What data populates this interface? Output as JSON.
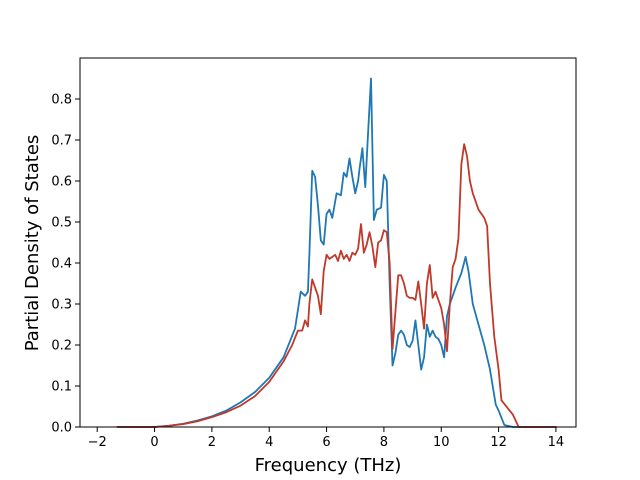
{
  "chart_data": {
    "type": "line",
    "title": "",
    "xlabel": "Frequency (THz)",
    "ylabel": "Partial Density of States",
    "xlim": [
      -2.6,
      14.7
    ],
    "ylim": [
      0,
      0.9
    ],
    "xticks": [
      -2,
      0,
      2,
      4,
      6,
      8,
      10,
      12,
      14
    ],
    "xtick_labels": [
      "−2",
      "0",
      "2",
      "4",
      "6",
      "8",
      "10",
      "12",
      "14"
    ],
    "yticks": [
      0.0,
      0.1,
      0.2,
      0.3,
      0.4,
      0.5,
      0.6,
      0.7,
      0.8
    ],
    "ytick_labels": [
      "0.0",
      "0.1",
      "0.2",
      "0.3",
      "0.4",
      "0.5",
      "0.6",
      "0.7",
      "0.8"
    ],
    "grid": false,
    "legend": "none",
    "series": [
      {
        "color": "#1f77b4",
        "x": [
          -1.3,
          0.0,
          0.5,
          1.0,
          1.5,
          2.0,
          2.5,
          3.0,
          3.5,
          4.0,
          4.5,
          4.9,
          5.1,
          5.25,
          5.35,
          5.4,
          5.5,
          5.6,
          5.7,
          5.8,
          5.9,
          6.0,
          6.1,
          6.2,
          6.3,
          6.35,
          6.5,
          6.6,
          6.7,
          6.8,
          6.9,
          7.0,
          7.1,
          7.15,
          7.25,
          7.35,
          7.45,
          7.55,
          7.65,
          7.75,
          7.9,
          8.0,
          8.1,
          8.2,
          8.3,
          8.4,
          8.5,
          8.6,
          8.7,
          8.8,
          8.9,
          9.0,
          9.1,
          9.2,
          9.3,
          9.4,
          9.5,
          9.6,
          9.7,
          9.8,
          9.9,
          10.0,
          10.1,
          10.2,
          10.3,
          10.4,
          10.5,
          10.7,
          10.85,
          10.95,
          11.1,
          11.3,
          11.5,
          11.7,
          11.9,
          12.0,
          12.2,
          12.5,
          14.0
        ],
        "y": [
          0.0,
          0.0,
          0.003,
          0.008,
          0.016,
          0.026,
          0.04,
          0.06,
          0.085,
          0.12,
          0.17,
          0.24,
          0.33,
          0.32,
          0.33,
          0.42,
          0.625,
          0.61,
          0.54,
          0.455,
          0.445,
          0.52,
          0.53,
          0.51,
          0.55,
          0.57,
          0.565,
          0.62,
          0.61,
          0.655,
          0.61,
          0.57,
          0.6,
          0.63,
          0.68,
          0.585,
          0.72,
          0.85,
          0.505,
          0.53,
          0.535,
          0.615,
          0.6,
          0.35,
          0.15,
          0.18,
          0.225,
          0.235,
          0.225,
          0.2,
          0.195,
          0.21,
          0.26,
          0.2,
          0.14,
          0.17,
          0.25,
          0.22,
          0.235,
          0.22,
          0.215,
          0.2,
          0.17,
          0.27,
          0.3,
          0.32,
          0.34,
          0.375,
          0.415,
          0.38,
          0.3,
          0.25,
          0.2,
          0.14,
          0.055,
          0.04,
          0.005,
          0.0,
          0.0
        ]
      },
      {
        "color": "#c0392b",
        "x": [
          -1.3,
          0.0,
          0.5,
          1.0,
          1.5,
          2.0,
          2.5,
          3.0,
          3.5,
          4.0,
          4.5,
          4.8,
          5.0,
          5.1,
          5.15,
          5.25,
          5.35,
          5.4,
          5.5,
          5.6,
          5.7,
          5.8,
          5.9,
          6.0,
          6.1,
          6.2,
          6.3,
          6.4,
          6.5,
          6.6,
          6.7,
          6.8,
          6.9,
          7.0,
          7.1,
          7.2,
          7.3,
          7.4,
          7.5,
          7.6,
          7.7,
          7.8,
          7.9,
          8.0,
          8.1,
          8.2,
          8.3,
          8.4,
          8.5,
          8.6,
          8.7,
          8.8,
          8.9,
          9.0,
          9.1,
          9.2,
          9.3,
          9.4,
          9.5,
          9.6,
          9.7,
          9.8,
          9.9,
          10.0,
          10.1,
          10.2,
          10.3,
          10.4,
          10.5,
          10.6,
          10.7,
          10.8,
          10.9,
          11.0,
          11.1,
          11.3,
          11.5,
          11.6,
          11.7,
          11.85,
          12.0,
          12.1,
          12.5,
          12.7,
          14.0
        ],
        "y": [
          0.0,
          0.0,
          0.003,
          0.007,
          0.014,
          0.024,
          0.036,
          0.052,
          0.075,
          0.11,
          0.16,
          0.2,
          0.235,
          0.235,
          0.235,
          0.26,
          0.245,
          0.3,
          0.36,
          0.34,
          0.32,
          0.275,
          0.38,
          0.42,
          0.41,
          0.415,
          0.42,
          0.405,
          0.43,
          0.41,
          0.42,
          0.405,
          0.425,
          0.42,
          0.435,
          0.495,
          0.425,
          0.445,
          0.475,
          0.44,
          0.39,
          0.45,
          0.455,
          0.48,
          0.475,
          0.4,
          0.19,
          0.28,
          0.37,
          0.37,
          0.35,
          0.32,
          0.315,
          0.315,
          0.31,
          0.355,
          0.3,
          0.24,
          0.35,
          0.395,
          0.315,
          0.33,
          0.31,
          0.29,
          0.25,
          0.185,
          0.3,
          0.39,
          0.41,
          0.46,
          0.64,
          0.69,
          0.66,
          0.6,
          0.57,
          0.53,
          0.51,
          0.49,
          0.35,
          0.22,
          0.14,
          0.065,
          0.03,
          0.0,
          0.0
        ]
      }
    ]
  }
}
